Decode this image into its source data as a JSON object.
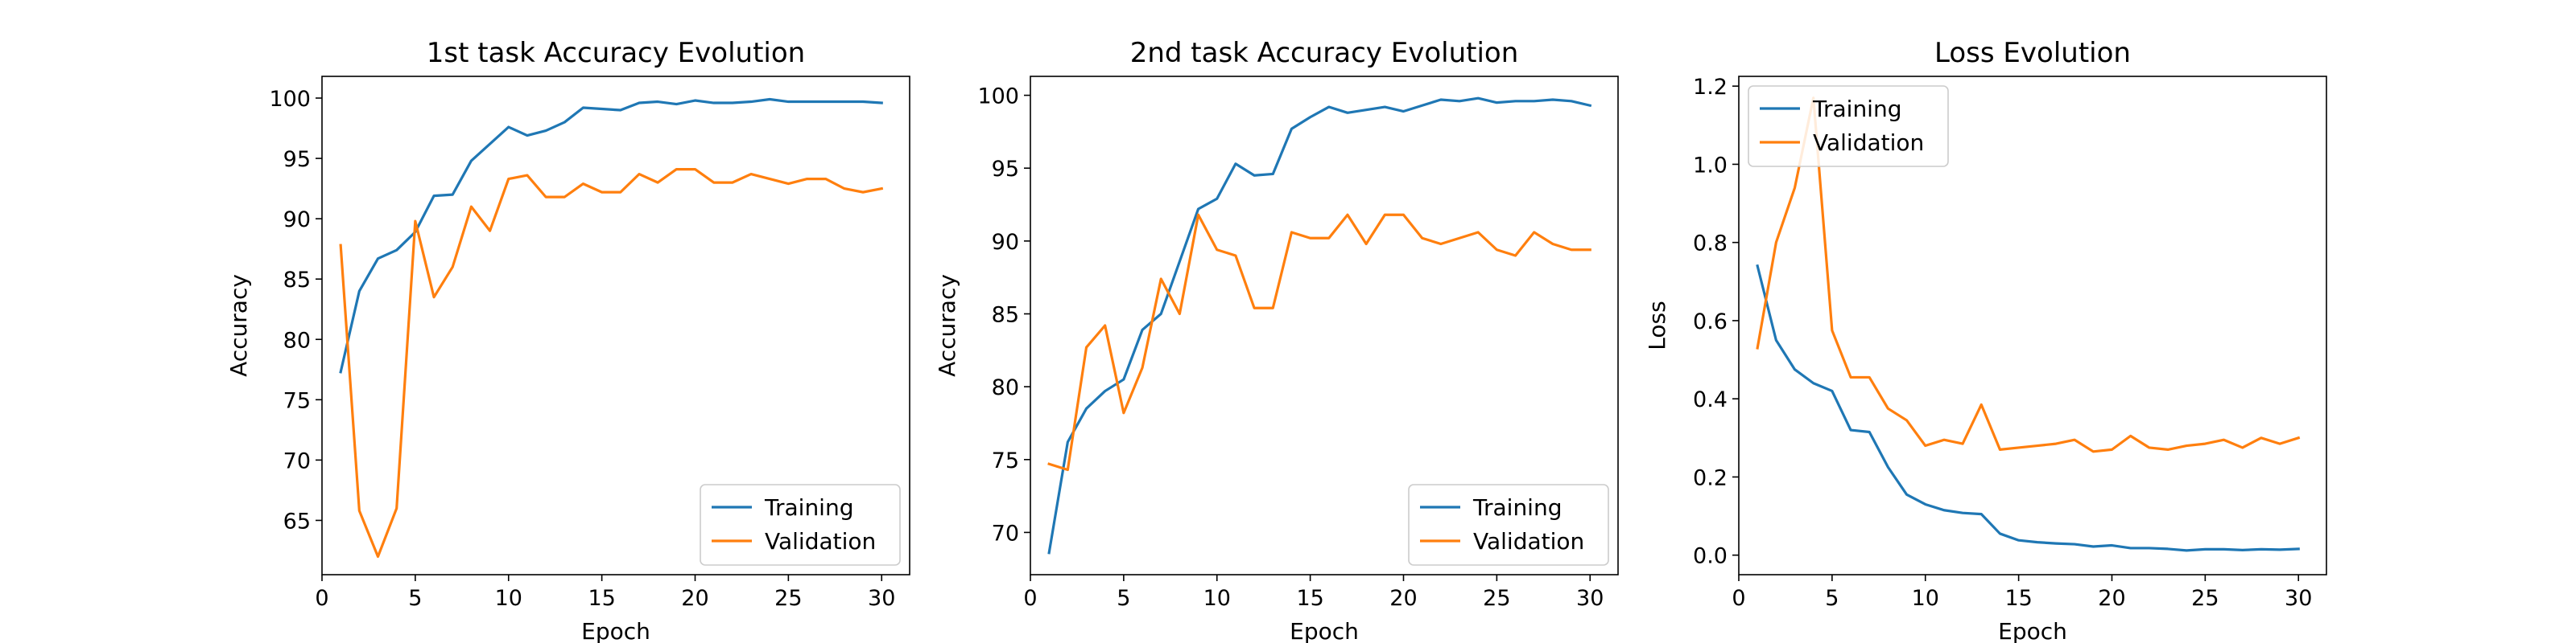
{
  "colors": {
    "training": "#1f77b4",
    "validation": "#ff7f0e"
  },
  "chart_data": [
    {
      "type": "line",
      "title": "1st task Accuracy Evolution",
      "xlabel": "Epoch",
      "ylabel": "Accuracy",
      "xlim": [
        0,
        31.5
      ],
      "ylim": [
        60.5,
        101.8
      ],
      "xticks": [
        0,
        5,
        10,
        15,
        20,
        25,
        30
      ],
      "yticks": [
        65,
        70,
        75,
        80,
        85,
        90,
        95,
        100
      ],
      "legend": "lower-right",
      "grid": false,
      "x": [
        1,
        2,
        3,
        4,
        5,
        6,
        7,
        8,
        9,
        10,
        11,
        12,
        13,
        14,
        15,
        16,
        17,
        18,
        19,
        20,
        21,
        22,
        23,
        24,
        25,
        26,
        27,
        28,
        29,
        30
      ],
      "series": [
        {
          "name": "Training",
          "values": [
            77.3,
            84.0,
            86.7,
            87.4,
            88.9,
            91.9,
            92.0,
            94.8,
            96.2,
            97.6,
            96.9,
            97.3,
            98.0,
            99.2,
            99.1,
            99.0,
            99.6,
            99.7,
            99.5,
            99.8,
            99.6,
            99.6,
            99.7,
            99.9,
            99.7,
            99.7,
            99.7,
            99.7,
            99.7,
            99.6
          ]
        },
        {
          "name": "Validation",
          "values": [
            87.8,
            65.8,
            62.0,
            66.0,
            89.8,
            83.5,
            86.0,
            91.0,
            89.0,
            93.3,
            93.6,
            91.8,
            91.8,
            92.9,
            92.2,
            92.2,
            93.7,
            93.0,
            94.1,
            94.1,
            93.0,
            93.0,
            93.7,
            93.3,
            92.9,
            93.3,
            93.3,
            92.5,
            92.2,
            92.5
          ]
        }
      ]
    },
    {
      "type": "line",
      "title": "2nd task Accuracy Evolution",
      "xlabel": "Epoch",
      "ylabel": "Accuracy",
      "xlim": [
        0,
        31.5
      ],
      "ylim": [
        67.1,
        101.3
      ],
      "xticks": [
        0,
        5,
        10,
        15,
        20,
        25,
        30
      ],
      "yticks": [
        70,
        75,
        80,
        85,
        90,
        95,
        100
      ],
      "legend": "lower-right",
      "grid": false,
      "x": [
        1,
        2,
        3,
        4,
        5,
        6,
        7,
        8,
        9,
        10,
        11,
        12,
        13,
        14,
        15,
        16,
        17,
        18,
        19,
        20,
        21,
        22,
        23,
        24,
        25,
        26,
        27,
        28,
        29,
        30
      ],
      "series": [
        {
          "name": "Training",
          "values": [
            68.6,
            76.2,
            78.5,
            79.7,
            80.5,
            83.9,
            85.0,
            88.6,
            92.2,
            92.9,
            95.3,
            94.5,
            94.6,
            97.7,
            98.5,
            99.2,
            98.8,
            99.0,
            99.2,
            98.9,
            99.3,
            99.7,
            99.6,
            99.8,
            99.5,
            99.6,
            99.6,
            99.7,
            99.6,
            99.3
          ]
        },
        {
          "name": "Validation",
          "values": [
            74.7,
            74.3,
            82.7,
            84.2,
            78.2,
            81.3,
            87.4,
            85.0,
            91.8,
            89.4,
            89.0,
            85.4,
            85.4,
            90.6,
            90.2,
            90.2,
            91.8,
            89.8,
            91.8,
            91.8,
            90.2,
            89.8,
            90.2,
            90.6,
            89.4,
            89.0,
            90.6,
            89.8,
            89.4,
            89.4
          ]
        }
      ]
    },
    {
      "type": "line",
      "title": "Loss Evolution",
      "xlabel": "Epoch",
      "ylabel": "Loss",
      "xlim": [
        0,
        31.5
      ],
      "ylim": [
        -0.05,
        1.225
      ],
      "xticks": [
        0,
        5,
        10,
        15,
        20,
        25,
        30
      ],
      "yticks": [
        0.0,
        0.2,
        0.4,
        0.6,
        0.8,
        1.0,
        1.2
      ],
      "ytickdecimals": 1,
      "legend": "upper-left",
      "grid": false,
      "x": [
        1,
        2,
        3,
        4,
        5,
        6,
        7,
        8,
        9,
        10,
        11,
        12,
        13,
        14,
        15,
        16,
        17,
        18,
        19,
        20,
        21,
        22,
        23,
        24,
        25,
        26,
        27,
        28,
        29,
        30
      ],
      "series": [
        {
          "name": "Training",
          "values": [
            0.74,
            0.55,
            0.475,
            0.44,
            0.42,
            0.32,
            0.315,
            0.225,
            0.155,
            0.13,
            0.115,
            0.108,
            0.105,
            0.055,
            0.038,
            0.033,
            0.03,
            0.028,
            0.022,
            0.025,
            0.018,
            0.018,
            0.016,
            0.012,
            0.015,
            0.015,
            0.013,
            0.015,
            0.014,
            0.016
          ]
        },
        {
          "name": "Validation",
          "values": [
            0.53,
            0.8,
            0.94,
            1.17,
            0.575,
            0.455,
            0.455,
            0.375,
            0.345,
            0.28,
            0.295,
            0.285,
            0.385,
            0.27,
            0.275,
            0.28,
            0.285,
            0.295,
            0.265,
            0.27,
            0.305,
            0.275,
            0.27,
            0.28,
            0.285,
            0.295,
            0.275,
            0.3,
            0.285,
            0.3
          ]
        }
      ]
    }
  ]
}
